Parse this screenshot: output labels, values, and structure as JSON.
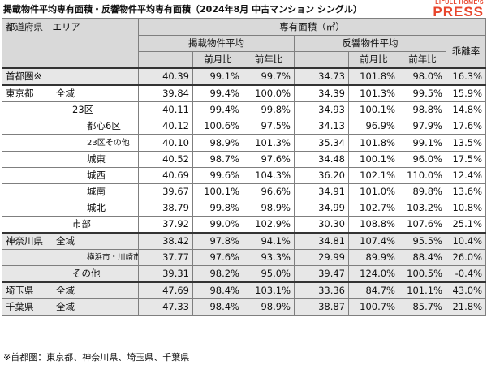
{
  "title": "掲載物件平均専有面積・反響物件平均専有面積（2024年8月 中古マンション シングル）",
  "logo": {
    "top": "LIFULL HOME'S",
    "main": "PRESS"
  },
  "header": {
    "area": "都道府県　エリア",
    "area_total": "専有面積（㎡）",
    "listed": "掲載物件平均",
    "response": "反響物件平均",
    "divergence": "乖離率",
    "mom": "前月比",
    "yoy": "前年比"
  },
  "rows": [
    {
      "pref": "首都圏※",
      "area": "",
      "lv": "40.39",
      "lm": "99.1%",
      "ly": "99.7%",
      "rv": "34.73",
      "rm": "101.8%",
      "ry": "98.0%",
      "div": "16.3%"
    },
    {
      "pref": "東京都",
      "area": "全域",
      "lv": "39.84",
      "lm": "99.4%",
      "ly": "100.0%",
      "rv": "34.39",
      "rm": "101.3%",
      "ry": "99.5%",
      "div": "15.9%"
    },
    {
      "pref": "",
      "area": "23区",
      "lv": "40.11",
      "lm": "99.4%",
      "ly": "99.8%",
      "rv": "34.93",
      "rm": "100.1%",
      "ry": "98.8%",
      "div": "14.8%"
    },
    {
      "pref": "",
      "area": "都心6区",
      "lv": "40.12",
      "lm": "100.6%",
      "ly": "97.5%",
      "rv": "34.13",
      "rm": "96.9%",
      "ry": "97.9%",
      "div": "17.6%"
    },
    {
      "pref": "",
      "area": "23区その他",
      "lv": "40.10",
      "lm": "98.9%",
      "ly": "101.3%",
      "rv": "35.34",
      "rm": "101.8%",
      "ry": "99.1%",
      "div": "13.5%"
    },
    {
      "pref": "",
      "area": "城東",
      "lv": "40.52",
      "lm": "98.7%",
      "ly": "97.6%",
      "rv": "34.48",
      "rm": "100.1%",
      "ry": "96.0%",
      "div": "17.5%"
    },
    {
      "pref": "",
      "area": "城西",
      "lv": "40.69",
      "lm": "99.6%",
      "ly": "104.3%",
      "rv": "36.20",
      "rm": "102.1%",
      "ry": "110.0%",
      "div": "12.4%"
    },
    {
      "pref": "",
      "area": "城南",
      "lv": "39.67",
      "lm": "100.1%",
      "ly": "96.6%",
      "rv": "34.91",
      "rm": "101.0%",
      "ry": "89.8%",
      "div": "13.6%"
    },
    {
      "pref": "",
      "area": "城北",
      "lv": "38.79",
      "lm": "99.8%",
      "ly": "98.9%",
      "rv": "34.99",
      "rm": "102.7%",
      "ry": "103.2%",
      "div": "10.8%"
    },
    {
      "pref": "",
      "area": "市部",
      "lv": "37.92",
      "lm": "99.0%",
      "ly": "102.9%",
      "rv": "30.30",
      "rm": "108.8%",
      "ry": "107.6%",
      "div": "25.1%"
    },
    {
      "pref": "神奈川県",
      "area": "全域",
      "lv": "38.42",
      "lm": "97.8%",
      "ly": "94.1%",
      "rv": "34.81",
      "rm": "107.4%",
      "ry": "95.5%",
      "div": "10.4%"
    },
    {
      "pref": "",
      "area": "横浜市・川崎市",
      "lv": "37.77",
      "lm": "97.6%",
      "ly": "93.3%",
      "rv": "29.99",
      "rm": "89.9%",
      "ry": "88.4%",
      "div": "26.0%"
    },
    {
      "pref": "",
      "area": "その他",
      "lv": "39.31",
      "lm": "98.2%",
      "ly": "95.0%",
      "rv": "39.47",
      "rm": "124.0%",
      "ry": "100.5%",
      "div": "-0.4%"
    },
    {
      "pref": "埼玉県",
      "area": "全域",
      "lv": "47.69",
      "lm": "98.4%",
      "ly": "103.1%",
      "rv": "33.36",
      "rm": "84.7%",
      "ry": "101.1%",
      "div": "43.0%"
    },
    {
      "pref": "千葉県",
      "area": "全域",
      "lv": "47.33",
      "lm": "98.4%",
      "ly": "98.9%",
      "rv": "38.87",
      "rm": "100.7%",
      "ry": "85.7%",
      "div": "21.8%"
    }
  ],
  "footnote": "※首都圏：東京都、神奈川県、埼玉県、千葉県"
}
